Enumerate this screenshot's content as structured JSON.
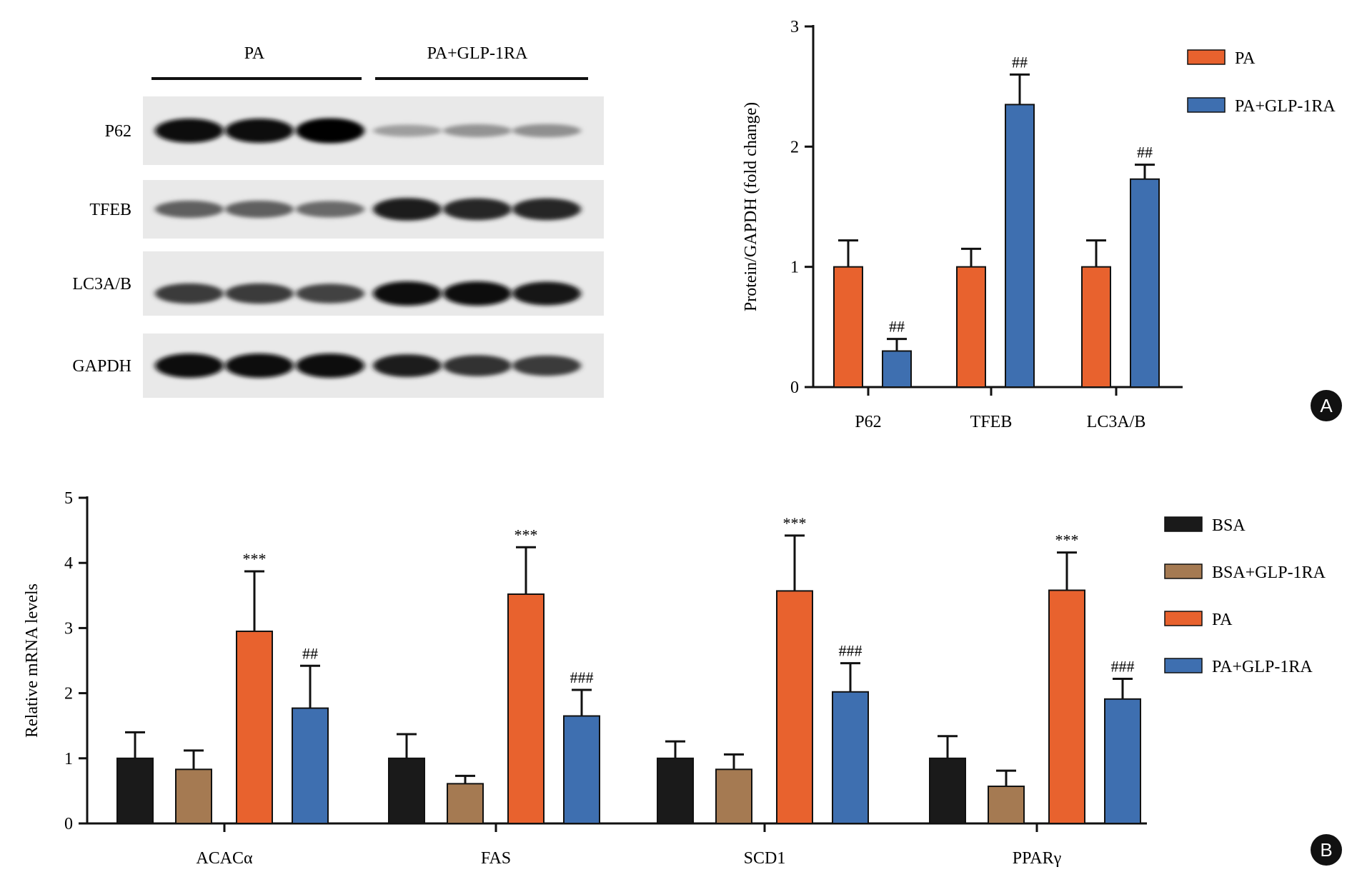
{
  "blot": {
    "group_labels": [
      "PA",
      "PA+GLP-1RA"
    ],
    "rows": [
      {
        "label": "P62",
        "bands": [
          1.0,
          1.0,
          1.05,
          0.22,
          0.28,
          0.3
        ]
      },
      {
        "label": "TFEB",
        "bands": [
          0.55,
          0.55,
          0.5,
          0.9,
          0.85,
          0.85
        ]
      },
      {
        "label": "LC3A/B",
        "bands": [
          0.75,
          0.75,
          0.7,
          1.0,
          1.0,
          0.95
        ]
      },
      {
        "label": "GAPDH",
        "bands": [
          1.0,
          1.0,
          1.0,
          0.9,
          0.8,
          0.75
        ]
      }
    ]
  },
  "panels": [
    {
      "label": "A"
    },
    {
      "label": "B"
    }
  ],
  "chart_data": [
    {
      "type": "bar",
      "title": "",
      "xlabel": "",
      "ylabel": "Protein/GAPDH (fold change)",
      "ylim": [
        0,
        3
      ],
      "yticks": [
        "0",
        "1",
        "2",
        "3"
      ],
      "categories": [
        "P62",
        "TFEB",
        "LC3A/B"
      ],
      "series": [
        {
          "name": "PA",
          "color": "#e8622e",
          "values": [
            1.0,
            1.0,
            1.0
          ],
          "errors": [
            0.22,
            0.15,
            0.22
          ],
          "annotations": [
            "",
            "",
            ""
          ]
        },
        {
          "name": "PA+GLP-1RA",
          "color": "#3e6fb0",
          "values": [
            0.3,
            2.35,
            1.73
          ],
          "errors": [
            0.1,
            0.25,
            0.12
          ],
          "annotations": [
            "##",
            "##",
            "##"
          ]
        }
      ],
      "legend_position": "top-right"
    },
    {
      "type": "bar",
      "title": "",
      "xlabel": "",
      "ylabel": "Relative mRNA levels",
      "ylim": [
        0,
        5
      ],
      "yticks": [
        "0",
        "1",
        "2",
        "3",
        "4",
        "5"
      ],
      "categories": [
        "ACACα",
        "FAS",
        "SCD1",
        "PPARγ"
      ],
      "series": [
        {
          "name": "BSA",
          "color": "#1a1a1a",
          "values": [
            1.0,
            1.0,
            1.0,
            1.0
          ],
          "errors": [
            0.4,
            0.37,
            0.26,
            0.34
          ],
          "annotations": [
            "",
            "",
            "",
            ""
          ]
        },
        {
          "name": "BSA+GLP-1RA",
          "color": "#a57a52",
          "values": [
            0.83,
            0.61,
            0.83,
            0.57
          ],
          "errors": [
            0.29,
            0.12,
            0.23,
            0.24
          ],
          "annotations": [
            "",
            "",
            "",
            ""
          ]
        },
        {
          "name": "PA",
          "color": "#e8622e",
          "values": [
            2.95,
            3.52,
            3.57,
            3.58
          ],
          "errors": [
            0.92,
            0.72,
            0.85,
            0.58
          ],
          "annotations": [
            "***",
            "***",
            "***",
            "***"
          ]
        },
        {
          "name": "PA+GLP-1RA",
          "color": "#3e6fb0",
          "values": [
            1.77,
            1.65,
            2.02,
            1.91
          ],
          "errors": [
            0.65,
            0.4,
            0.44,
            0.31
          ],
          "annotations": [
            "##",
            "###",
            "###",
            "###"
          ]
        }
      ],
      "legend_position": "right"
    }
  ]
}
